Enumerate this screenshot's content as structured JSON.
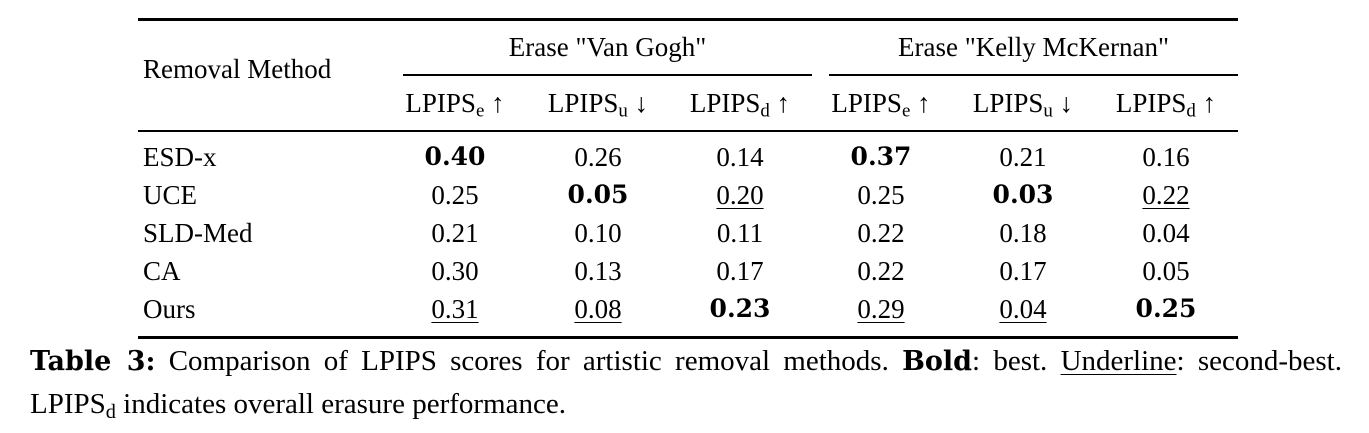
{
  "table": {
    "row_header": "Removal Method",
    "groups": [
      "Erase \"Van Gogh\"",
      "Erase \"Kelly McKernan\""
    ],
    "metric_base": "LPIPS",
    "columns": [
      {
        "sub": "e",
        "arrow": "↑"
      },
      {
        "sub": "u",
        "arrow": "↓"
      },
      {
        "sub": "d",
        "arrow": "↑"
      },
      {
        "sub": "e",
        "arrow": "↑"
      },
      {
        "sub": "u",
        "arrow": "↓"
      },
      {
        "sub": "d",
        "arrow": "↑"
      }
    ],
    "rows": [
      {
        "method": "ESD-x",
        "values": [
          "0.40",
          "0.26",
          "0.14",
          "0.37",
          "0.21",
          "0.16"
        ],
        "styles": [
          "bold",
          "",
          "",
          "bold",
          "",
          ""
        ]
      },
      {
        "method": "UCE",
        "values": [
          "0.25",
          "0.05",
          "0.20",
          "0.25",
          "0.03",
          "0.22"
        ],
        "styles": [
          "",
          "bold",
          "underline",
          "",
          "bold",
          "underline"
        ]
      },
      {
        "method": "SLD-Med",
        "values": [
          "0.21",
          "0.10",
          "0.11",
          "0.22",
          "0.18",
          "0.04"
        ],
        "styles": [
          "",
          "",
          "",
          "",
          "",
          ""
        ]
      },
      {
        "method": "CA",
        "values": [
          "0.30",
          "0.13",
          "0.17",
          "0.22",
          "0.17",
          "0.05"
        ],
        "styles": [
          "",
          "",
          "",
          "",
          "",
          ""
        ]
      },
      {
        "method": "Ours",
        "values": [
          "0.31",
          "0.08",
          "0.23",
          "0.29",
          "0.04",
          "0.25"
        ],
        "styles": [
          "underline",
          "underline",
          "bold",
          "underline",
          "underline",
          "bold"
        ]
      }
    ]
  },
  "caption": {
    "label": "Table 3:",
    "text1": " Comparison of LPIPS scores for artistic removal methods. ",
    "bold_word": "Bold",
    "text2": ": best.",
    "underline_word": "Underline",
    "text3": ": second-best. LPIPS",
    "text3_sub": "d",
    "text4": " indicates overall erasure performance."
  }
}
